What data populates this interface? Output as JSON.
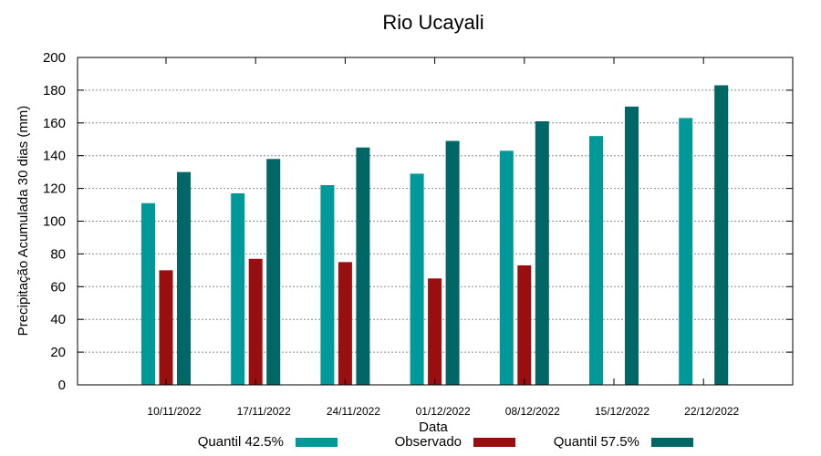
{
  "chart_data": {
    "type": "bar",
    "title": "Rio Ucayali",
    "xlabel": "Data",
    "ylabel": "Precipitação Acumulada 30 dias (mm)",
    "ylim": [
      0,
      200
    ],
    "yticks": [
      0,
      20,
      40,
      60,
      80,
      100,
      120,
      140,
      160,
      180,
      200
    ],
    "grid": true,
    "legend_position": "bottom",
    "categories": [
      "10/11/2022",
      "17/11/2022",
      "24/11/2022",
      "01/12/2022",
      "08/12/2022",
      "15/12/2022",
      "22/12/2022"
    ],
    "series": [
      {
        "name": "Quantil 42.5%",
        "color": "#009999",
        "values": [
          111,
          117,
          122,
          129,
          143,
          152,
          163
        ]
      },
      {
        "name": "Observado",
        "color": "#990f0f",
        "values": [
          70,
          77,
          75,
          65,
          73,
          null,
          null
        ]
      },
      {
        "name": "Quantil 57.5%",
        "color": "#006666",
        "values": [
          130,
          138,
          145,
          149,
          161,
          170,
          183
        ]
      }
    ]
  }
}
